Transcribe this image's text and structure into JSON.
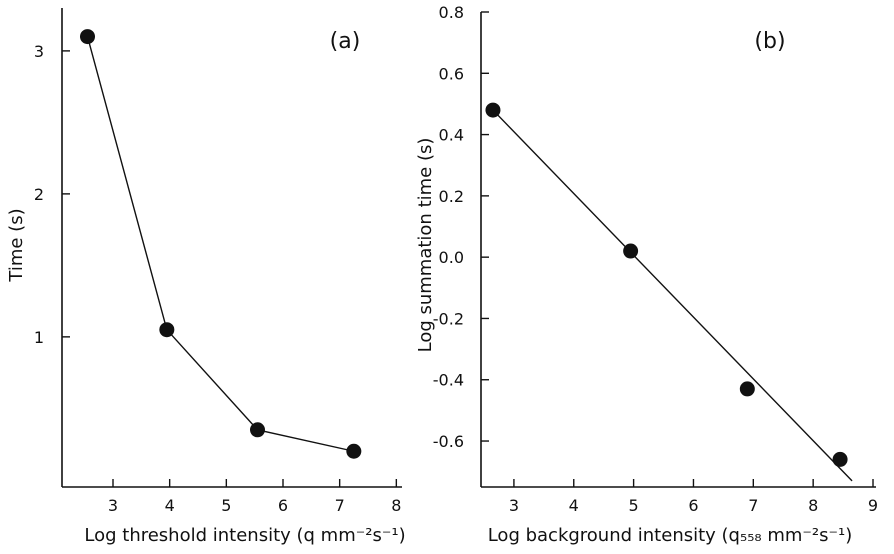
{
  "chart_data": [
    {
      "type": "line",
      "panel_label": "(a)",
      "xlabel": "Log threshold intensity (q mm⁻²s⁻¹)",
      "ylabel": "Time (s)",
      "xlim": [
        2.1,
        8.1
      ],
      "ylim": [
        -0.05,
        3.3
      ],
      "xticks": [
        3,
        4,
        5,
        6,
        7,
        8
      ],
      "yticks": [
        1,
        2,
        3
      ],
      "series": [
        {
          "x": [
            2.55,
            3.95,
            5.55,
            7.25
          ],
          "y": [
            3.1,
            1.05,
            0.35,
            0.2
          ]
        }
      ],
      "grid": false,
      "legend": "none"
    },
    {
      "type": "scatter",
      "panel_label": "(b)",
      "xlabel": "Log background intensity (q₅₅₈ mm⁻²s⁻¹)",
      "ylabel": "Log summation time (s)",
      "xlim": [
        2.45,
        9.05
      ],
      "ylim": [
        -0.75,
        0.8
      ],
      "xticks": [
        3,
        4,
        5,
        6,
        7,
        8,
        9
      ],
      "yticks": [
        0.8,
        0.6,
        0.4,
        0.2,
        0.0,
        -0.2,
        -0.4,
        -0.6
      ],
      "ytick_labels": [
        "0.8",
        "0.6",
        "0.4",
        "0.2",
        "0.0",
        "-0.2",
        "-0.4",
        "-0.6"
      ],
      "series": [
        {
          "x": [
            2.65,
            4.95,
            6.9,
            8.45
          ],
          "y": [
            0.48,
            0.02,
            -0.43,
            -0.66
          ]
        }
      ],
      "fit_line": {
        "x": [
          2.65,
          8.65
        ],
        "y": [
          0.48,
          -0.73
        ]
      },
      "grid": false,
      "legend": "none"
    }
  ]
}
